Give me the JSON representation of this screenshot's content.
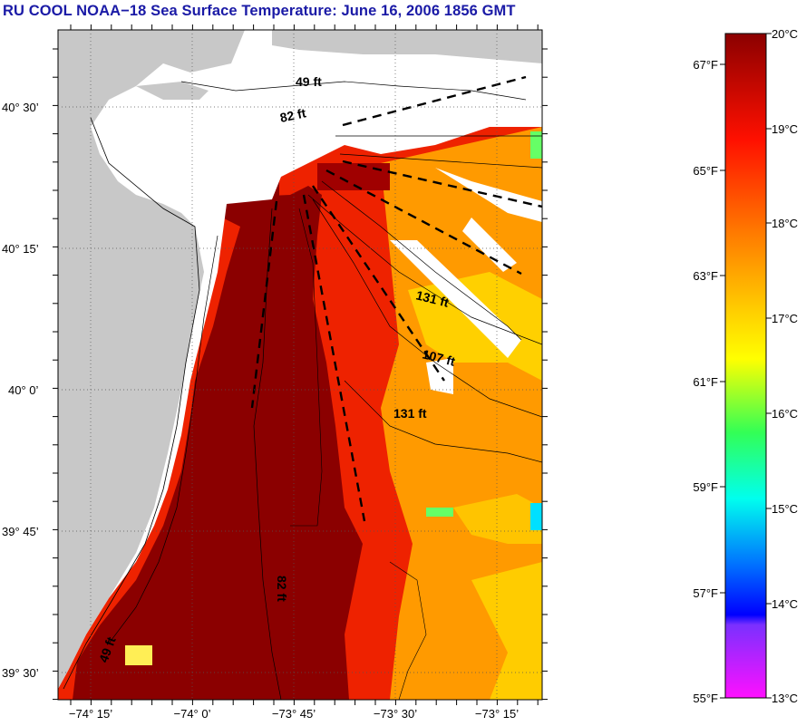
{
  "title": "RU COOL  NOAA−18  Sea Surface Temperature:  June 16, 2006 1856 GMT",
  "lat_ticks": [
    "40° 30’",
    "40° 15’",
    "40° 0’",
    "39° 45’",
    "39° 30’"
  ],
  "lon_ticks": [
    "−74° 15’",
    "−74° 0’",
    "−73° 45’",
    "−73° 30’",
    "−73° 15’"
  ],
  "contours": {
    "c49": "49 ft",
    "c82a": "82 ft",
    "c131a": "131 ft",
    "c107": "107 ft",
    "c131b": "131 ft",
    "c82b": "82 ft",
    "c49b": "49 ft"
  },
  "colorbar": {
    "fahrenheit": [
      "67°F",
      "65°F",
      "63°F",
      "61°F",
      "59°F",
      "57°F",
      "55°F"
    ],
    "celsius": [
      "20°C",
      "19°C",
      "18°C",
      "17°C",
      "16°C",
      "15°C",
      "14°C",
      "13°C"
    ],
    "colors": [
      "#8b0000",
      "#ff1a00",
      "#ff8c00",
      "#ffff00",
      "#33ff66",
      "#00e6ff",
      "#0050ff",
      "#0000ff",
      "#ff00ff"
    ]
  },
  "colors": {
    "land": "#c8c8c8",
    "water_nodata": "#ffffff",
    "title": "#1a1aa6"
  }
}
